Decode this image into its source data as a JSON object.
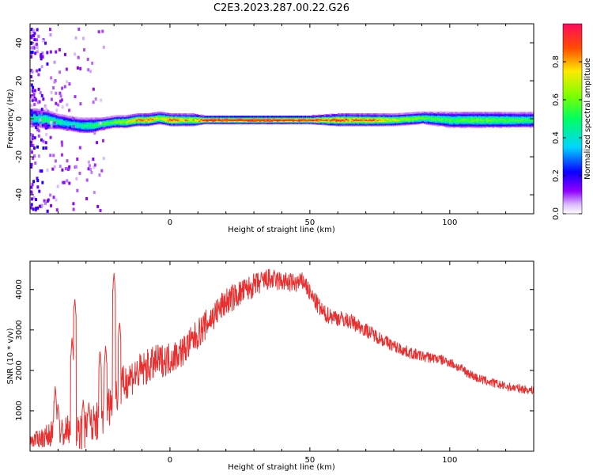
{
  "title": "C2E3.2023.287.00.22.G26",
  "chart_data": [
    {
      "type": "heatmap",
      "xlabel": "Height of straight line (km)",
      "ylabel": "Frequency (Hz)",
      "xlim": [
        -50,
        130
      ],
      "ylim": [
        -50,
        50
      ],
      "xticks": [
        0,
        50,
        100
      ],
      "yticks": [
        -40,
        -20,
        0,
        20,
        40
      ],
      "colorbar": {
        "label": "Normalized spectral amplitude",
        "range": [
          0,
          1
        ],
        "ticks": [
          "0.0",
          "0.2",
          "0.4",
          "0.6",
          "0.8"
        ],
        "colormap": "gist_rainbow_r"
      },
      "ridge": {
        "x": [
          -48,
          -44,
          -40,
          -36,
          -32,
          -28,
          -24,
          -20,
          -16,
          -12,
          -8,
          -4,
          0,
          4,
          8,
          12,
          20,
          30,
          40,
          50,
          60,
          70,
          80,
          90,
          100,
          110,
          120,
          130
        ],
        "freq": [
          1,
          0,
          -1,
          -2,
          -3,
          -3,
          -2,
          -1,
          -1,
          0,
          0,
          1,
          0,
          0,
          0,
          0,
          0,
          0,
          0,
          0,
          0,
          0,
          0,
          1,
          0,
          0,
          0,
          0
        ],
        "amplitude": [
          0.45,
          0.5,
          0.45,
          0.4,
          0.45,
          0.5,
          0.55,
          0.6,
          0.7,
          0.8,
          0.85,
          0.7,
          0.9,
          0.8,
          0.75,
          1.0,
          1.0,
          1.0,
          1.0,
          0.95,
          0.9,
          0.85,
          0.7,
          0.6,
          0.55,
          0.6,
          0.55,
          0.5
        ],
        "halfwidth_hz": [
          5,
          5,
          4,
          4,
          4,
          4,
          3,
          3,
          3,
          3,
          3,
          3,
          3,
          3,
          3,
          2,
          2,
          2,
          2,
          2,
          3,
          3,
          3,
          3,
          4,
          4,
          4,
          4
        ]
      }
    },
    {
      "type": "line",
      "xlabel": "Height of straight line (km)",
      "ylabel": "SNR (10 * v/v)",
      "xlim": [
        -50,
        130
      ],
      "ylim": [
        0,
        4700
      ],
      "xticks": [
        0,
        50,
        100
      ],
      "yticks": [
        1000,
        2000,
        3000,
        4000
      ],
      "series": [
        {
          "color": "#e83030",
          "trend": {
            "x": [
              -50,
              -45,
              -42,
              -40,
              -38,
              -35,
              -30,
              -25,
              -22,
              -20,
              -15,
              -10,
              -5,
              0,
              5,
              10,
              15,
              20,
              25,
              30,
              35,
              40,
              45,
              48,
              50,
              55,
              60,
              65,
              70,
              75,
              80,
              85,
              90,
              95,
              100,
              105,
              110,
              115,
              120,
              125,
              130
            ],
            "y": [
              250,
              350,
              450,
              500,
              450,
              550,
              500,
              800,
              1100,
              1300,
              1800,
              2000,
              2200,
              2300,
              2500,
              2900,
              3300,
              3700,
              3900,
              4100,
              4250,
              4200,
              4150,
              4200,
              3900,
              3400,
              3300,
              3200,
              3000,
              2800,
              2600,
              2450,
              2350,
              2300,
              2200,
              2000,
              1800,
              1700,
              1600,
              1550,
              1500
            ]
          },
          "noise_amplitude": {
            "x": [
              -50,
              -40,
              -30,
              -20,
              -10,
              0,
              20,
              40,
              60,
              80,
              100,
              130
            ],
            "y": [
              150,
              350,
              500,
              500,
              450,
              400,
              350,
              250,
              200,
              150,
              120,
              100
            ]
          },
          "spikes": [
            {
              "x": -41,
              "y": 1600
            },
            {
              "x": -40,
              "y": 1200
            },
            {
              "x": -35,
              "y": 2800
            },
            {
              "x": -34,
              "y": 3800
            },
            {
              "x": -31,
              "y": 1300
            },
            {
              "x": -29,
              "y": 1200
            },
            {
              "x": -25,
              "y": 2500
            },
            {
              "x": -23,
              "y": 2600
            },
            {
              "x": -20,
              "y": 4400
            },
            {
              "x": -18,
              "y": 3200
            }
          ]
        }
      ]
    }
  ]
}
